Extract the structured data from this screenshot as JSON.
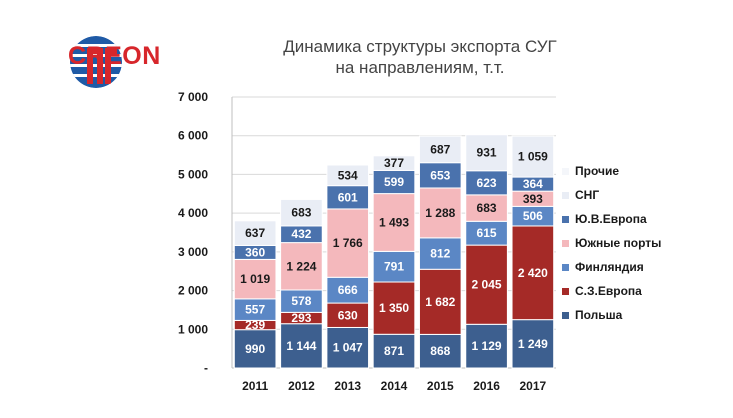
{
  "header": {
    "logo_text": "CREON",
    "title_line1": "Динамика структуры экспорта СУГ",
    "title_line2": "на направлениям, т.т."
  },
  "chart_data": {
    "type": "bar",
    "stacked": true,
    "categories": [
      "2011",
      "2012",
      "2013",
      "2014",
      "2015",
      "2016",
      "2017"
    ],
    "ylim": [
      0,
      7000
    ],
    "yticks": [
      0,
      1000,
      2000,
      3000,
      4000,
      5000,
      6000,
      7000
    ],
    "ytick_labels": [
      "-",
      "1 000",
      "2 000",
      "3 000",
      "4 000",
      "5 000",
      "6 000",
      "7 000"
    ],
    "grid": true,
    "legend_position": "right",
    "series": [
      {
        "name": "Польша",
        "color": "#3d5f8f",
        "label_color": "#ffffff",
        "values": [
          990,
          1144,
          1047,
          871,
          868,
          1129,
          1249
        ],
        "labels": [
          "990",
          "1 144",
          "1 047",
          "871",
          "868",
          "1 129",
          "1 249"
        ]
      },
      {
        "name": "С.З.Европа",
        "color": "#a52a27",
        "label_color": "#ffffff",
        "values": [
          239,
          293,
          630,
          1350,
          1682,
          2045,
          2420
        ],
        "labels": [
          "239",
          "293",
          "630",
          "1 350",
          "1 682",
          "2 045",
          "2 420"
        ]
      },
      {
        "name": "Финляндия",
        "color": "#5b87c5",
        "label_color": "#ffffff",
        "values": [
          557,
          578,
          666,
          791,
          812,
          615,
          506
        ],
        "labels": [
          "557",
          "578",
          "666",
          "791",
          "812",
          "615",
          "506"
        ]
      },
      {
        "name": "Южные порты",
        "color": "#f4b8bc",
        "label_color": "#1a1a1a",
        "values": [
          1019,
          1224,
          1766,
          1493,
          1288,
          683,
          393
        ],
        "labels": [
          "1 019",
          "1 224",
          "1 766",
          "1 493",
          "1 288",
          "683",
          "393"
        ]
      },
      {
        "name": "Ю.В.Европа",
        "color": "#4a72ad",
        "label_color": "#ffffff",
        "values": [
          360,
          432,
          601,
          599,
          653,
          623,
          364
        ],
        "labels": [
          "360",
          "432",
          "601",
          "599",
          "653",
          "623",
          "364"
        ]
      },
      {
        "name": "СНГ",
        "color": "#e9edf5",
        "label_color": "#1a1a1a",
        "values": [
          637,
          683,
          534,
          377,
          687,
          931,
          1059
        ],
        "labels": [
          "637",
          "683",
          "534",
          "377",
          "687",
          "931",
          "1 059"
        ]
      },
      {
        "name": "Прочие",
        "color": "#ffffff",
        "label_color": "#1a1a1a",
        "values": [
          0,
          0,
          0,
          0,
          0,
          0,
          0
        ],
        "labels": []
      }
    ]
  }
}
